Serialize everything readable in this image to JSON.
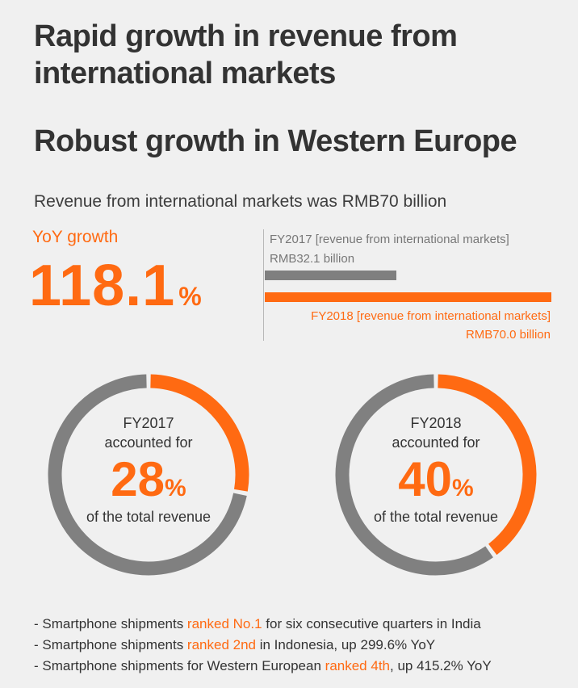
{
  "title": "Rapid growth in revenue from international markets",
  "subtitle": "Robust growth in Western Europe",
  "headline": "Revenue from international markets was RMB70 billion",
  "yoy": {
    "label": "YoY growth",
    "value": "118.1",
    "unit": "%"
  },
  "chart_data": [
    {
      "type": "bar",
      "orientation": "horizontal",
      "categories": [
        "FY2017 [revenue from international markets]",
        "FY2018 [revenue from international markets]"
      ],
      "values": [
        32.1,
        70.0
      ],
      "value_labels": [
        "RMB32.1 billion",
        "RMB70.0 billion"
      ],
      "unit": "RMB billion",
      "colors": [
        "#7f7f7f",
        "#ff6a12"
      ]
    },
    {
      "type": "pie",
      "variant": "donut",
      "caption_lines": [
        "FY2017",
        "accounted for"
      ],
      "value_label": "28",
      "unit": "%",
      "footer": "of the total revenue",
      "value": 28,
      "colors": {
        "highlight": "#ff6a12",
        "rest": "#808080"
      }
    },
    {
      "type": "pie",
      "variant": "donut",
      "caption_lines": [
        "FY2018",
        "accounted for"
      ],
      "value_label": "40",
      "unit": "%",
      "footer": "of the total revenue",
      "value": 40,
      "colors": {
        "highlight": "#ff6a12",
        "rest": "#808080"
      }
    }
  ],
  "bullets": [
    {
      "pre": "- Smartphone shipments ",
      "hl": "ranked No.1",
      "post": " for six consecutive quarters in India"
    },
    {
      "pre": "- Smartphone shipments ",
      "hl": "ranked 2nd",
      "post": " in Indonesia, up 299.6% YoY"
    },
    {
      "pre": "- Smartphone shipments for Western European ",
      "hl": "ranked 4th",
      "post": ", up 415.2% YoY"
    }
  ],
  "colors": {
    "accent": "#ff6a12",
    "gray": "#808080",
    "background": "#f0f0f0"
  }
}
